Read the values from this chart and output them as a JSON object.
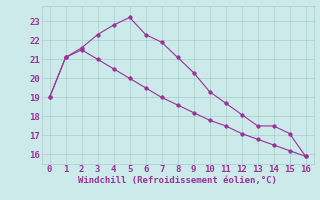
{
  "line1_x": [
    0,
    1,
    2,
    3,
    4,
    5,
    6,
    7,
    8,
    9,
    10,
    11,
    12,
    13,
    14,
    15,
    16
  ],
  "line1_y": [
    19.0,
    21.1,
    21.6,
    22.3,
    22.8,
    23.2,
    22.3,
    21.9,
    21.1,
    20.3,
    19.3,
    18.7,
    18.1,
    17.5,
    17.5,
    17.1,
    15.9
  ],
  "line2_x": [
    0,
    1,
    2,
    3,
    4,
    5,
    6,
    7,
    8,
    9,
    10,
    11,
    12,
    13,
    14,
    15,
    16
  ],
  "line2_y": [
    19.0,
    21.1,
    21.5,
    21.0,
    20.5,
    20.0,
    19.5,
    19.0,
    18.6,
    18.2,
    17.8,
    17.5,
    17.1,
    16.8,
    16.5,
    16.2,
    15.9
  ],
  "line_color": "#993399",
  "marker": "o",
  "marker_size": 2.5,
  "xlabel": "Windchill (Refroidissement éolien,°C)",
  "xlim": [
    -0.5,
    16.5
  ],
  "ylim": [
    15.5,
    23.8
  ],
  "yticks": [
    16,
    17,
    18,
    19,
    20,
    21,
    22,
    23
  ],
  "xticks": [
    0,
    1,
    2,
    3,
    4,
    5,
    6,
    7,
    8,
    9,
    10,
    11,
    12,
    13,
    14,
    15,
    16
  ],
  "bg_color": "#cceaea",
  "grid_color": "#aacccc",
  "xlabel_color": "#993399",
  "tick_color": "#993399",
  "font_size_xlabel": 6.5,
  "font_size_ticks": 6.5
}
